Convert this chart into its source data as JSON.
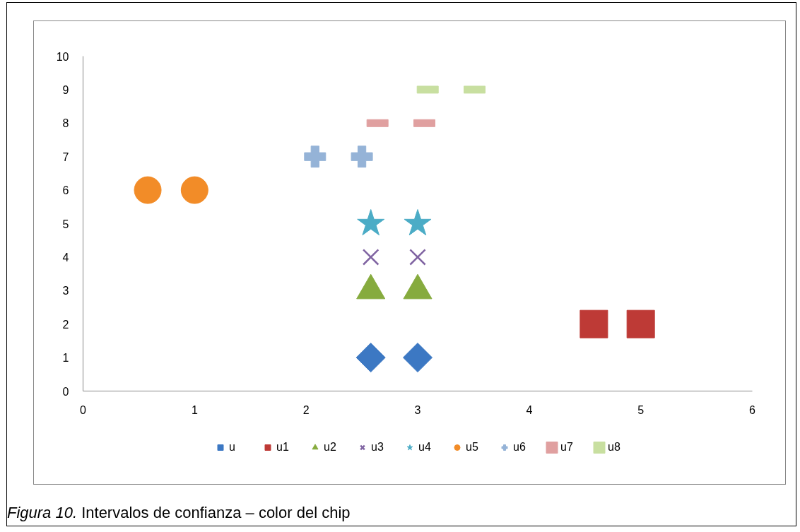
{
  "chart_data": {
    "type": "scatter",
    "xlim": [
      0,
      6
    ],
    "ylim": [
      0,
      10
    ],
    "xticks": [
      0,
      1,
      2,
      3,
      4,
      5,
      6
    ],
    "yticks": [
      0,
      1,
      2,
      3,
      4,
      5,
      6,
      7,
      8,
      9,
      10
    ],
    "grid": false,
    "legend": "bottom",
    "annotations": [
      "Figura 10. Intervalos de confianza – color del chip"
    ],
    "series": [
      {
        "name": "u",
        "color": "#3c78c3",
        "marker": "diamond",
        "x": [
          2.58,
          3.0
        ],
        "values": [
          1,
          1
        ]
      },
      {
        "name": "u1",
        "color": "#be3a36",
        "marker": "square",
        "x": [
          4.58,
          5.0
        ],
        "values": [
          2,
          2
        ]
      },
      {
        "name": "u2",
        "color": "#86ab3e",
        "marker": "triangle",
        "x": [
          2.58,
          3.0
        ],
        "values": [
          3,
          3
        ]
      },
      {
        "name": "u3",
        "color": "#8064a2",
        "marker": "x",
        "x": [
          2.58,
          3.0
        ],
        "values": [
          4,
          4
        ]
      },
      {
        "name": "u4",
        "color": "#4bacc6",
        "marker": "star",
        "x": [
          2.58,
          3.0
        ],
        "values": [
          5,
          5
        ]
      },
      {
        "name": "u5",
        "color": "#f28c28",
        "marker": "circle",
        "x": [
          0.58,
          1.0
        ],
        "values": [
          6,
          6
        ]
      },
      {
        "name": "u6",
        "color": "#95b3d7",
        "marker": "cross",
        "x": [
          2.08,
          2.5
        ],
        "values": [
          7,
          7
        ]
      },
      {
        "name": "u7",
        "color": "#e0a0a0",
        "x": [
          2.64,
          3.06
        ],
        "values": [
          8,
          8
        ]
      },
      {
        "name": "u8",
        "color": "#c8dfa0",
        "x": [
          3.09,
          3.51
        ],
        "values": [
          9,
          9
        ]
      }
    ]
  }
}
